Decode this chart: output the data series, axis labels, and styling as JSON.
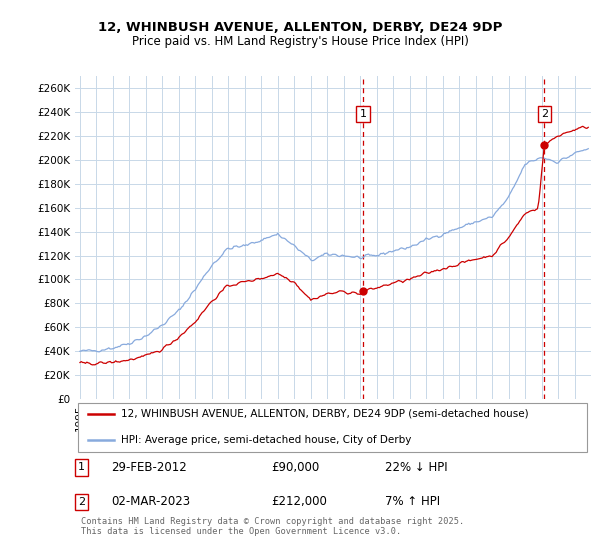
{
  "title1": "12, WHINBUSH AVENUE, ALLENTON, DERBY, DE24 9DP",
  "title2": "Price paid vs. HM Land Registry's House Price Index (HPI)",
  "ylim": [
    0,
    270000
  ],
  "yticks": [
    0,
    20000,
    40000,
    60000,
    80000,
    100000,
    120000,
    140000,
    160000,
    180000,
    200000,
    220000,
    240000,
    260000
  ],
  "ytick_labels": [
    "£0",
    "£20K",
    "£40K",
    "£60K",
    "£80K",
    "£100K",
    "£120K",
    "£140K",
    "£160K",
    "£180K",
    "£200K",
    "£220K",
    "£240K",
    "£260K"
  ],
  "line1_color": "#cc0000",
  "line2_color": "#88aadd",
  "legend_line1": "12, WHINBUSH AVENUE, ALLENTON, DERBY, DE24 9DP (semi-detached house)",
  "legend_line2": "HPI: Average price, semi-detached house, City of Derby",
  "annotation1_date": "29-FEB-2012",
  "annotation1_price": "£90,000",
  "annotation1_hpi": "22% ↓ HPI",
  "annotation2_date": "02-MAR-2023",
  "annotation2_price": "£212,000",
  "annotation2_hpi": "7% ↑ HPI",
  "footnote": "Contains HM Land Registry data © Crown copyright and database right 2025.\nThis data is licensed under the Open Government Licence v3.0.",
  "vline1_x": 2012.17,
  "vline2_x": 2023.17,
  "sale1_x": 2012.17,
  "sale1_y": 90000,
  "sale2_x": 2023.17,
  "sale2_y": 212000,
  "background_color": "#ffffff",
  "grid_color": "#c8d8e8",
  "xlim_left": 1994.7,
  "xlim_right": 2026.0
}
